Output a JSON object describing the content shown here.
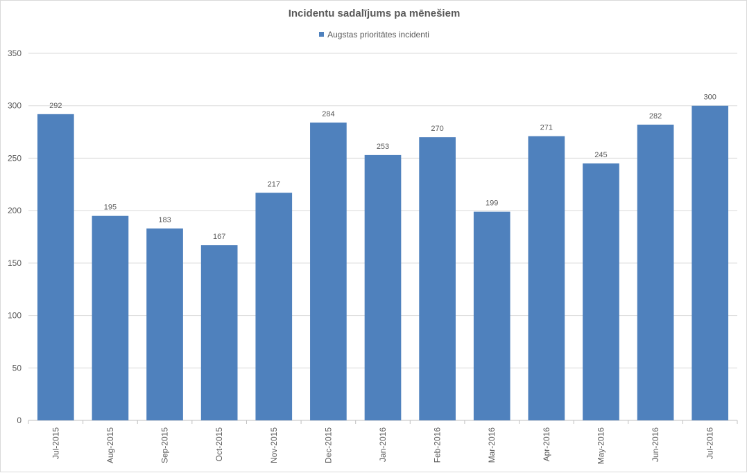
{
  "chart_data": {
    "type": "bar",
    "title": "Incidentu sadalījums pa mēnešiem",
    "xlabel": "",
    "ylabel": "",
    "categories": [
      "Jul-2015",
      "Aug-2015",
      "Sep-2015",
      "Oct-2015",
      "Nov-2015",
      "Dec-2015",
      "Jan-2016",
      "Feb-2016",
      "Mar-2016",
      "Apr-2016",
      "May-2016",
      "Jun-2016",
      "Jul-2016"
    ],
    "series": [
      {
        "name": "Augstas prioritātes incidenti",
        "color": "#4f81bd",
        "values": [
          292,
          195,
          183,
          167,
          217,
          284,
          253,
          270,
          199,
          271,
          245,
          282,
          300
        ]
      }
    ],
    "ylim": [
      0,
      350
    ],
    "yticks": [
      0,
      50,
      100,
      150,
      200,
      250,
      300,
      350
    ],
    "grid": true,
    "legend_position": "top",
    "data_labels": true
  }
}
